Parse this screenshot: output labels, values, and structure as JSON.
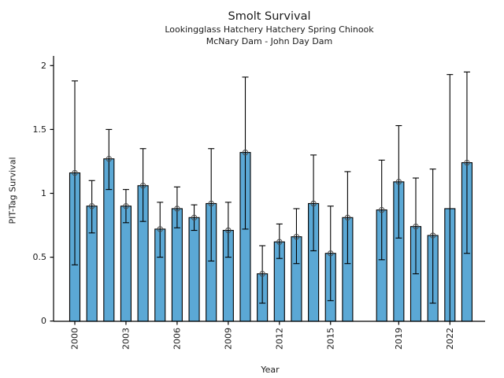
{
  "chart_data": {
    "type": "bar",
    "title": "Smolt Survival",
    "subtitle1": "Lookingglass Hatchery Hatchery Spring Chinook",
    "subtitle2": "McNary Dam - John Day Dam",
    "xlabel": "Year",
    "ylabel": "PIT-Tag Survival",
    "ylim": [
      0,
      2
    ],
    "ytick_values": [
      0,
      0.5,
      1,
      1.5,
      2
    ],
    "ytick_labels": [
      "0",
      "0.5",
      "1",
      "1.5",
      "2"
    ],
    "xtick_years": [
      2000,
      2003,
      2006,
      2009,
      2012,
      2015,
      2019,
      2022
    ],
    "missing_years": [
      2017
    ],
    "grid": false,
    "legend": null,
    "error_bars": "asymmetric confidence intervals with caps",
    "colors": {
      "bar_fill": "#5BA8D5",
      "bar_edge": "#000000",
      "error_line": "#000000",
      "marker_edge": "#4a4a4a",
      "axis": "#000000",
      "text": "#1a1a1a"
    },
    "points": [
      {
        "year": 2000,
        "value": 1.16,
        "ci_low": 0.44,
        "ci_high": 1.88,
        "marker": true
      },
      {
        "year": 2001,
        "value": 0.9,
        "ci_low": 0.69,
        "ci_high": 1.1,
        "marker": true
      },
      {
        "year": 2002,
        "value": 1.27,
        "ci_low": 1.03,
        "ci_high": 1.5,
        "marker": true
      },
      {
        "year": 2003,
        "value": 0.9,
        "ci_low": 0.77,
        "ci_high": 1.03,
        "marker": true
      },
      {
        "year": 2004,
        "value": 1.06,
        "ci_low": 0.78,
        "ci_high": 1.35,
        "marker": true
      },
      {
        "year": 2005,
        "value": 0.72,
        "ci_low": 0.5,
        "ci_high": 0.93,
        "marker": true
      },
      {
        "year": 2006,
        "value": 0.88,
        "ci_low": 0.73,
        "ci_high": 1.05,
        "marker": true
      },
      {
        "year": 2007,
        "value": 0.81,
        "ci_low": 0.71,
        "ci_high": 0.91,
        "marker": true
      },
      {
        "year": 2008,
        "value": 0.92,
        "ci_low": 0.47,
        "ci_high": 1.35,
        "marker": true
      },
      {
        "year": 2009,
        "value": 0.71,
        "ci_low": 0.5,
        "ci_high": 0.93,
        "marker": true
      },
      {
        "year": 2010,
        "value": 1.32,
        "ci_low": 0.72,
        "ci_high": 1.91,
        "marker": true
      },
      {
        "year": 2011,
        "value": 0.37,
        "ci_low": 0.14,
        "ci_high": 0.59,
        "marker": true
      },
      {
        "year": 2012,
        "value": 0.62,
        "ci_low": 0.49,
        "ci_high": 0.76,
        "marker": true
      },
      {
        "year": 2013,
        "value": 0.66,
        "ci_low": 0.45,
        "ci_high": 0.88,
        "marker": true
      },
      {
        "year": 2014,
        "value": 0.92,
        "ci_low": 0.55,
        "ci_high": 1.3,
        "marker": true
      },
      {
        "year": 2015,
        "value": 0.53,
        "ci_low": 0.16,
        "ci_high": 0.9,
        "marker": true
      },
      {
        "year": 2016,
        "value": 0.81,
        "ci_low": 0.45,
        "ci_high": 1.17,
        "marker": true
      },
      {
        "year": 2018,
        "value": 0.87,
        "ci_low": 0.48,
        "ci_high": 1.26,
        "marker": true
      },
      {
        "year": 2019,
        "value": 1.09,
        "ci_low": 0.65,
        "ci_high": 1.53,
        "marker": true
      },
      {
        "year": 2020,
        "value": 0.74,
        "ci_low": 0.37,
        "ci_high": 1.12,
        "marker": true
      },
      {
        "year": 2021,
        "value": 0.67,
        "ci_low": 0.14,
        "ci_high": 1.19,
        "marker": true
      },
      {
        "year": 2022,
        "value": 0.88,
        "ci_low": 0.0,
        "ci_high": 1.93,
        "marker": false
      },
      {
        "year": 2023,
        "value": 1.24,
        "ci_low": 0.53,
        "ci_high": 1.95,
        "marker": true
      }
    ]
  }
}
